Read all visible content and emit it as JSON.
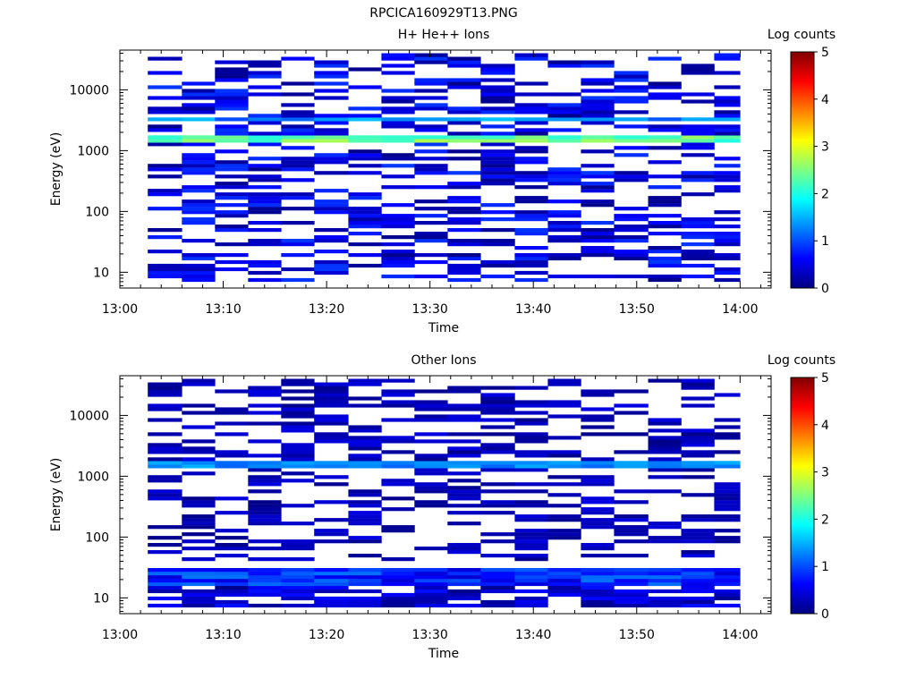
{
  "figure": {
    "title": "RPCICA160929T13.PNG"
  },
  "chart_data": [
    {
      "type": "heatmap",
      "title": "H+ He++ Ions",
      "xlabel": "Time",
      "ylabel": "Energy (eV)",
      "x_tick_labels": [
        "13:00",
        "13:10",
        "13:20",
        "13:30",
        "13:40",
        "13:50",
        "14:00"
      ],
      "x_ticks_min": [
        0,
        10,
        20,
        30,
        40,
        50,
        60
      ],
      "xlim_min": [
        0,
        63
      ],
      "y_scale": "log",
      "y_tick_labels": [
        "10",
        "100",
        "1000",
        "10000"
      ],
      "y_ticks": [
        10,
        100,
        1000,
        10000
      ],
      "ylim": [
        5.5,
        45000
      ],
      "time_bins_min": [
        2.7,
        6.0,
        9.2,
        12.4,
        15.6,
        18.8,
        22.1,
        25.3,
        28.5,
        31.7,
        34.9,
        38.2,
        41.4,
        44.6,
        47.8,
        51.1,
        54.3,
        57.5,
        60.0
      ],
      "colorbar": {
        "label": "Log counts",
        "range": [
          0,
          5
        ],
        "tick_labels": [
          "0",
          "1",
          "2",
          "3",
          "4",
          "5"
        ],
        "ticks": [
          0,
          1,
          2,
          3,
          4,
          5
        ]
      },
      "features": [
        {
          "energy_range_eV": [
            1400,
            1900
          ],
          "level_range": [
            2.0,
            2.8
          ]
        },
        {
          "energy_range_eV": [
            2900,
            3600
          ],
          "level_range": [
            1.0,
            1.6
          ]
        },
        {
          "energy_range_eV": [
            7,
            40000
          ],
          "level_range": [
            0.05,
            0.9
          ],
          "coverage": "sparse"
        }
      ]
    },
    {
      "type": "heatmap",
      "title": "Other Ions",
      "xlabel": "Time",
      "ylabel": "Energy (eV)",
      "x_tick_labels": [
        "13:00",
        "13:10",
        "13:20",
        "13:30",
        "13:40",
        "13:50",
        "14:00"
      ],
      "x_ticks_min": [
        0,
        10,
        20,
        30,
        40,
        50,
        60
      ],
      "xlim_min": [
        0,
        63
      ],
      "y_scale": "log",
      "y_tick_labels": [
        "10",
        "100",
        "1000",
        "10000"
      ],
      "y_ticks": [
        10,
        100,
        1000,
        10000
      ],
      "ylim": [
        5.5,
        45000
      ],
      "time_bins_min": [
        2.7,
        6.0,
        9.2,
        12.4,
        15.6,
        18.8,
        22.1,
        25.3,
        28.5,
        31.7,
        34.9,
        38.2,
        41.4,
        44.6,
        47.8,
        51.1,
        54.3,
        57.5,
        60.0
      ],
      "colorbar": {
        "label": "Log counts",
        "range": [
          0,
          5
        ],
        "tick_labels": [
          "0",
          "1",
          "2",
          "3",
          "4",
          "5"
        ],
        "ticks": [
          0,
          1,
          2,
          3,
          4,
          5
        ]
      },
      "features": [
        {
          "energy_range_eV": [
            1400,
            1800
          ],
          "level_range": [
            1.1,
            1.5
          ]
        },
        {
          "energy_range_eV": [
            16,
            32
          ],
          "level_range": [
            0.4,
            1.2
          ]
        },
        {
          "energy_range_eV": [
            7,
            15
          ],
          "level_range": [
            0.05,
            0.7
          ],
          "coverage": "partial"
        },
        {
          "energy_range_eV": [
            40,
            40000
          ],
          "level_range": [
            0.05,
            0.5
          ],
          "coverage": "sparse"
        }
      ]
    }
  ]
}
